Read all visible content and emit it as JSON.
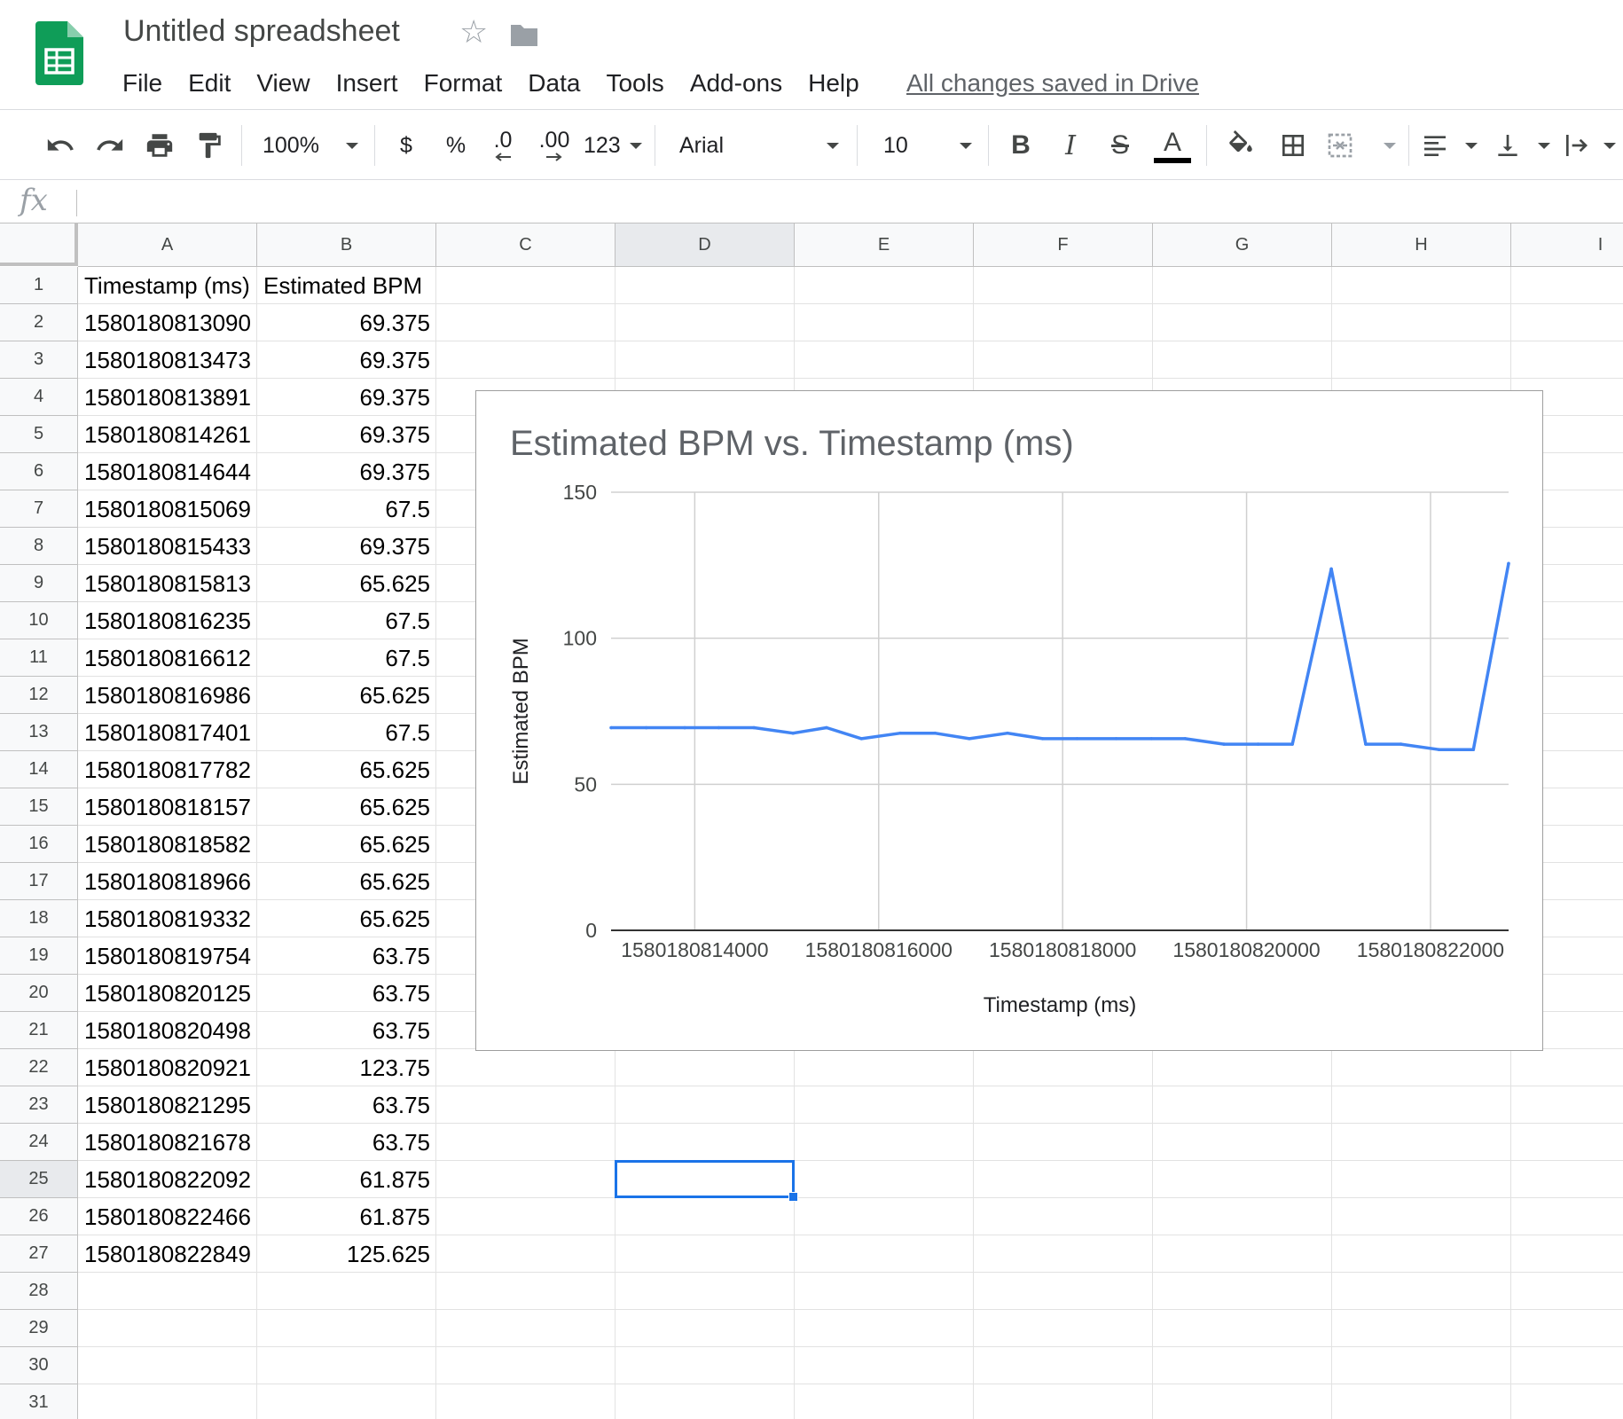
{
  "app": {
    "document_title": "Untitled spreadsheet",
    "save_status": "All changes saved in Drive",
    "menu": [
      "File",
      "Edit",
      "View",
      "Insert",
      "Format",
      "Data",
      "Tools",
      "Add-ons",
      "Help"
    ],
    "brand_color": "#0f9d58"
  },
  "toolbar": {
    "zoom": "100%",
    "currency_symbol": "$",
    "percent_symbol": "%",
    "decrease_decimal": ".0",
    "increase_decimal": ".00",
    "more_formats": "123",
    "font_family": "Arial",
    "font_size": "10",
    "bold": "B",
    "italic": "I",
    "strikethrough": "S",
    "text_color_glyph": "A",
    "icons": [
      "undo-icon",
      "redo-icon",
      "print-icon",
      "paint-format-icon",
      "fill-color-icon",
      "borders-icon",
      "merge-cells-icon",
      "align-left-icon",
      "vertical-align-icon",
      "text-wrap-icon"
    ]
  },
  "formula_bar": {
    "icon": "fx",
    "value": ""
  },
  "grid": {
    "columns": [
      "A",
      "B",
      "C",
      "D",
      "E",
      "F",
      "G",
      "H",
      "I"
    ],
    "row_count": 31,
    "active_cell": "D25",
    "active_column": "D",
    "active_row": 25,
    "header_row": [
      "Timestamp (ms)",
      "Estimated BPM"
    ],
    "data_rows": [
      [
        "1580180813090",
        "69.375"
      ],
      [
        "1580180813473",
        "69.375"
      ],
      [
        "1580180813891",
        "69.375"
      ],
      [
        "1580180814261",
        "69.375"
      ],
      [
        "1580180814644",
        "69.375"
      ],
      [
        "1580180815069",
        "67.5"
      ],
      [
        "1580180815433",
        "69.375"
      ],
      [
        "1580180815813",
        "65.625"
      ],
      [
        "1580180816235",
        "67.5"
      ],
      [
        "1580180816612",
        "67.5"
      ],
      [
        "1580180816986",
        "65.625"
      ],
      [
        "1580180817401",
        "67.5"
      ],
      [
        "1580180817782",
        "65.625"
      ],
      [
        "1580180818157",
        "65.625"
      ],
      [
        "1580180818582",
        "65.625"
      ],
      [
        "1580180818966",
        "65.625"
      ],
      [
        "1580180819332",
        "65.625"
      ],
      [
        "1580180819754",
        "63.75"
      ],
      [
        "1580180820125",
        "63.75"
      ],
      [
        "1580180820498",
        "63.75"
      ],
      [
        "1580180820921",
        "123.75"
      ],
      [
        "1580180821295",
        "63.75"
      ],
      [
        "1580180821678",
        "63.75"
      ],
      [
        "1580180822092",
        "61.875"
      ],
      [
        "1580180822466",
        "61.875"
      ],
      [
        "1580180822849",
        "125.625"
      ]
    ],
    "selection_color": "#1a73e8"
  },
  "chart_data": {
    "type": "line",
    "title": "Estimated BPM vs. Timestamp (ms)",
    "xlabel": "Timestamp (ms)",
    "ylabel": "Estimated BPM",
    "ylim": [
      0,
      150
    ],
    "yticks": [
      0,
      50,
      100,
      150
    ],
    "xlim": [
      1580180813090,
      1580180822849
    ],
    "xticks": [
      1580180814000,
      1580180816000,
      1580180818000,
      1580180820000,
      1580180822000
    ],
    "grid": true,
    "legend": "none",
    "line_color": "#4285f4",
    "x": [
      1580180813090,
      1580180813473,
      1580180813891,
      1580180814261,
      1580180814644,
      1580180815069,
      1580180815433,
      1580180815813,
      1580180816235,
      1580180816612,
      1580180816986,
      1580180817401,
      1580180817782,
      1580180818157,
      1580180818582,
      1580180818966,
      1580180819332,
      1580180819754,
      1580180820125,
      1580180820498,
      1580180820921,
      1580180821295,
      1580180821678,
      1580180822092,
      1580180822466,
      1580180822849
    ],
    "series": [
      {
        "values": [
          69.375,
          69.375,
          69.375,
          69.375,
          69.375,
          67.5,
          69.375,
          65.625,
          67.5,
          67.5,
          65.625,
          67.5,
          65.625,
          65.625,
          65.625,
          65.625,
          65.625,
          63.75,
          63.75,
          63.75,
          123.75,
          63.75,
          63.75,
          61.875,
          61.875,
          125.625
        ]
      }
    ]
  }
}
